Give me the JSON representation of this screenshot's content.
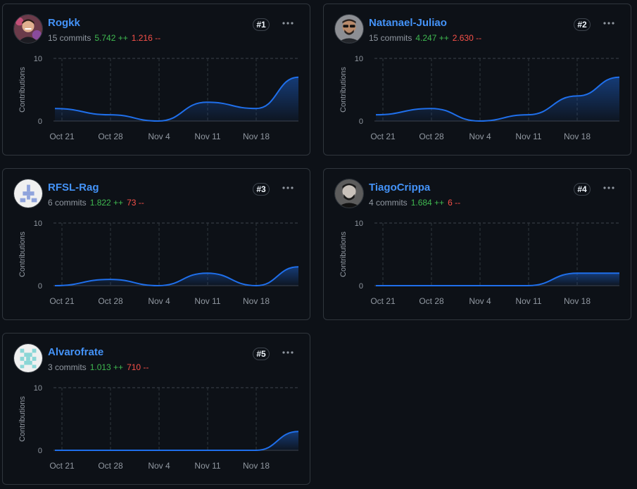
{
  "chart_defaults": {
    "ylabel": "Contributions",
    "y_ticks": [
      "0",
      "10"
    ],
    "ylim": [
      0,
      10
    ],
    "x_ticks": [
      "Oct 21",
      "Oct 28",
      "Nov 4",
      "Nov 11",
      "Nov 18"
    ],
    "line_color": "#1f6feb"
  },
  "contributors": [
    {
      "username": "Rogkk",
      "rank": "#1",
      "commits": "15 commits",
      "additions": "5.742 ++",
      "deletions": "1.216 --",
      "avatar": "photo-avatar-icon",
      "chart_data": {
        "type": "area",
        "x": [
          "Oct 19",
          "Oct 26",
          "Nov 2",
          "Nov 9",
          "Nov 16",
          "Nov 23"
        ],
        "values": [
          2,
          1,
          0,
          3,
          2,
          7
        ],
        "ylabel": "Contributions",
        "ylim": [
          0,
          10
        ]
      }
    },
    {
      "username": "Natanael-Juliao",
      "rank": "#2",
      "commits": "15 commits",
      "additions": "4.247 ++",
      "deletions": "2.630 --",
      "avatar": "photo-avatar-icon",
      "chart_data": {
        "type": "area",
        "x": [
          "Oct 19",
          "Oct 26",
          "Nov 2",
          "Nov 9",
          "Nov 16",
          "Nov 23"
        ],
        "values": [
          1,
          2,
          0,
          1,
          4,
          7
        ],
        "ylabel": "Contributions",
        "ylim": [
          0,
          10
        ]
      }
    },
    {
      "username": "RFSL-Rag",
      "rank": "#3",
      "commits": "6 commits",
      "additions": "1.822 ++",
      "deletions": "73 --",
      "avatar": "identicon-icon",
      "chart_data": {
        "type": "area",
        "x": [
          "Oct 19",
          "Oct 26",
          "Nov 2",
          "Nov 9",
          "Nov 16",
          "Nov 23"
        ],
        "values": [
          0,
          1,
          0,
          2,
          0,
          3
        ],
        "ylabel": "Contributions",
        "ylim": [
          0,
          10
        ]
      }
    },
    {
      "username": "TiagoCrippa",
      "rank": "#4",
      "commits": "4 commits",
      "additions": "1.684 ++",
      "deletions": "6 --",
      "avatar": "photo-avatar-icon",
      "chart_data": {
        "type": "area",
        "x": [
          "Oct 19",
          "Oct 26",
          "Nov 2",
          "Nov 9",
          "Nov 16",
          "Nov 23"
        ],
        "values": [
          0,
          0,
          0,
          0,
          2,
          2
        ],
        "ylabel": "Contributions",
        "ylim": [
          0,
          10
        ]
      }
    },
    {
      "username": "Alvarofrate",
      "rank": "#5",
      "commits": "3 commits",
      "additions": "1.013 ++",
      "deletions": "710 --",
      "avatar": "identicon-icon",
      "chart_data": {
        "type": "area",
        "x": [
          "Oct 19",
          "Oct 26",
          "Nov 2",
          "Nov 9",
          "Nov 16",
          "Nov 23"
        ],
        "values": [
          0,
          0,
          0,
          0,
          0,
          3
        ],
        "ylabel": "Contributions",
        "ylim": [
          0,
          10
        ]
      }
    }
  ]
}
